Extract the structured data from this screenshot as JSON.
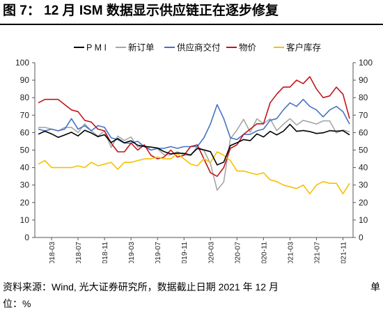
{
  "figure": {
    "title": "图 7：  12 月 ISM 数据显示供应链正在逐步修复",
    "source_line1": "资料来源：Wind, 光大证券研究所，数据截止日期 2021 年 12 月",
    "source_unit_a": "单",
    "source_line2": "位：%"
  },
  "chart_data": {
    "type": "line",
    "title": "",
    "xlabel": "",
    "ylabel": "",
    "ylim": [
      0,
      100
    ],
    "y_right_lim": [
      0,
      100
    ],
    "yticks": [
      0,
      10,
      20,
      30,
      40,
      50,
      60,
      70,
      80,
      90,
      100
    ],
    "grid": false,
    "legend_position": "top",
    "x_tick_labels": [
      "2018-03",
      "2018-07",
      "2018-11",
      "2019-03",
      "2019-07",
      "2019-11",
      "2020-03",
      "2020-07",
      "2020-11",
      "2021-03",
      "2021-07",
      "2021-11"
    ],
    "x": [
      "2018-01",
      "2018-02",
      "2018-03",
      "2018-04",
      "2018-05",
      "2018-06",
      "2018-07",
      "2018-08",
      "2018-09",
      "2018-10",
      "2018-11",
      "2018-12",
      "2019-01",
      "2019-02",
      "2019-03",
      "2019-04",
      "2019-05",
      "2019-06",
      "2019-07",
      "2019-08",
      "2019-09",
      "2019-10",
      "2019-11",
      "2019-12",
      "2020-01",
      "2020-02",
      "2020-03",
      "2020-04",
      "2020-05",
      "2020-06",
      "2020-07",
      "2020-08",
      "2020-09",
      "2020-10",
      "2020-11",
      "2020-12",
      "2021-01",
      "2021-02",
      "2021-03",
      "2021-04",
      "2021-05",
      "2021-06",
      "2021-07",
      "2021-08",
      "2021-09",
      "2021-10",
      "2021-11",
      "2021-12"
    ],
    "series": [
      {
        "name": "P M I",
        "color": "#000000",
        "values": [
          59.1,
          60.8,
          59.3,
          57.3,
          58.7,
          60.2,
          58.1,
          61.3,
          59.8,
          57.7,
          58.8,
          54.3,
          56.6,
          54.2,
          55.3,
          52.8,
          52.1,
          51.7,
          51.2,
          49.1,
          47.8,
          48.3,
          48.1,
          47.2,
          50.9,
          50.1,
          49.1,
          41.5,
          43.1,
          52.6,
          54.2,
          56.0,
          55.4,
          59.3,
          57.5,
          60.7,
          58.7,
          60.8,
          64.7,
          60.7,
          61.2,
          60.6,
          59.5,
          59.9,
          61.1,
          60.8,
          61.1,
          58.7
        ]
      },
      {
        "name": "新订单",
        "color": "#a6a6a6",
        "values": [
          63.0,
          63.0,
          62.0,
          61.0,
          63.0,
          63.0,
          60.0,
          65.0,
          61.0,
          58.0,
          61.0,
          51.5,
          58.0,
          55.5,
          57.5,
          51.7,
          52.7,
          50.0,
          50.8,
          47.2,
          47.3,
          49.1,
          47.2,
          46.8,
          52.0,
          49.8,
          42.2,
          27.1,
          31.8,
          56.4,
          61.5,
          67.6,
          60.2,
          67.9,
          65.1,
          67.9,
          61.1,
          64.8,
          68.0,
          64.3,
          67.0,
          66.0,
          64.9,
          66.7,
          66.7,
          59.8,
          61.5,
          60.4
        ]
      },
      {
        "name": "供应商交付",
        "color": "#4472c4",
        "values": [
          62.0,
          61.0,
          62.0,
          61.0,
          62.0,
          68.0,
          62.0,
          64.0,
          61.0,
          64.0,
          63.0,
          57.0,
          56.0,
          54.0,
          54.0,
          55.0,
          52.0,
          50.0,
          51.0,
          51.0,
          52.0,
          51.0,
          52.0,
          52.0,
          52.0,
          57.0,
          65.0,
          76.0,
          68.0,
          57.0,
          56.0,
          59.0,
          59.0,
          61.0,
          62.0,
          67.0,
          68.0,
          73.0,
          77.0,
          75.0,
          79.0,
          75.0,
          73.0,
          69.0,
          73.0,
          75.0,
          72.0,
          64.9
        ]
      },
      {
        "name": "物价",
        "color": "#c0141b",
        "values": [
          77.0,
          79.0,
          79.0,
          79.0,
          76.0,
          73.0,
          72.0,
          67.0,
          66.0,
          62.0,
          61.0,
          54.0,
          49.0,
          49.0,
          54.0,
          50.0,
          53.0,
          47.0,
          45.0,
          46.0,
          50.0,
          46.0,
          47.0,
          52.0,
          53.0,
          45.0,
          37.0,
          35.0,
          40.0,
          51.0,
          53.0,
          59.0,
          62.0,
          65.0,
          65.0,
          77.0,
          82.0,
          86.0,
          86.0,
          90.0,
          88.0,
          92.0,
          85.0,
          80.0,
          81.0,
          86.0,
          82.0,
          68.0
        ]
      },
      {
        "name": "客户库存",
        "color": "#f5c000",
        "values": [
          42.0,
          44.0,
          40.0,
          40.0,
          40.0,
          40.0,
          41.0,
          40.0,
          43.0,
          41.0,
          42.0,
          43.0,
          39.0,
          43.0,
          43.0,
          44.0,
          45.0,
          45.0,
          46.0,
          45.0,
          45.0,
          48.0,
          45.0,
          42.0,
          41.0,
          45.0,
          43.0,
          49.0,
          47.0,
          44.0,
          38.0,
          38.0,
          37.0,
          36.0,
          37.0,
          33.0,
          32.0,
          30.0,
          29.0,
          28.0,
          30.0,
          25.0,
          30.0,
          32.0,
          31.0,
          31.0,
          25.0,
          31.0
        ]
      }
    ]
  }
}
